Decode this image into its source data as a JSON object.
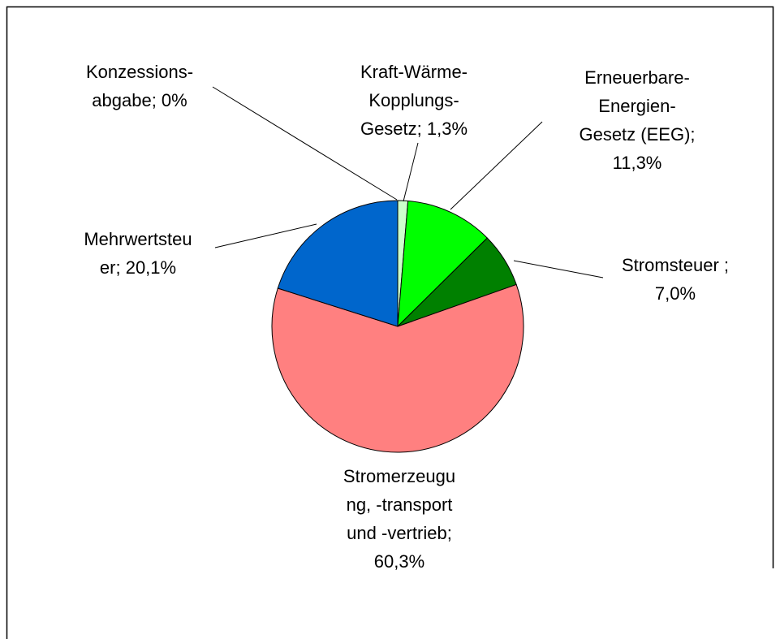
{
  "chart_data": {
    "type": "pie",
    "categories": [
      "Konzessions-abgabe",
      "Kraft-Wärme-Kopplungs-Gesetz",
      "Erneuerbare-Energien-Gesetz (EEG)",
      "Stromsteuer ",
      "Stromerzeugung, -transport und -vertrieb",
      "Mehrwertsteuer"
    ],
    "values": [
      0,
      1.3,
      11.3,
      7.0,
      60.3,
      20.1
    ],
    "value_labels": [
      "0%",
      "1,3%",
      "11,3%",
      "7,0%",
      "60,3%",
      "20,1%"
    ],
    "label_separator": "; ",
    "colors": [
      "#ffffff",
      "#ccffcc",
      "#00ff00",
      "#008000",
      "#ff8080",
      "#0066cc"
    ]
  }
}
